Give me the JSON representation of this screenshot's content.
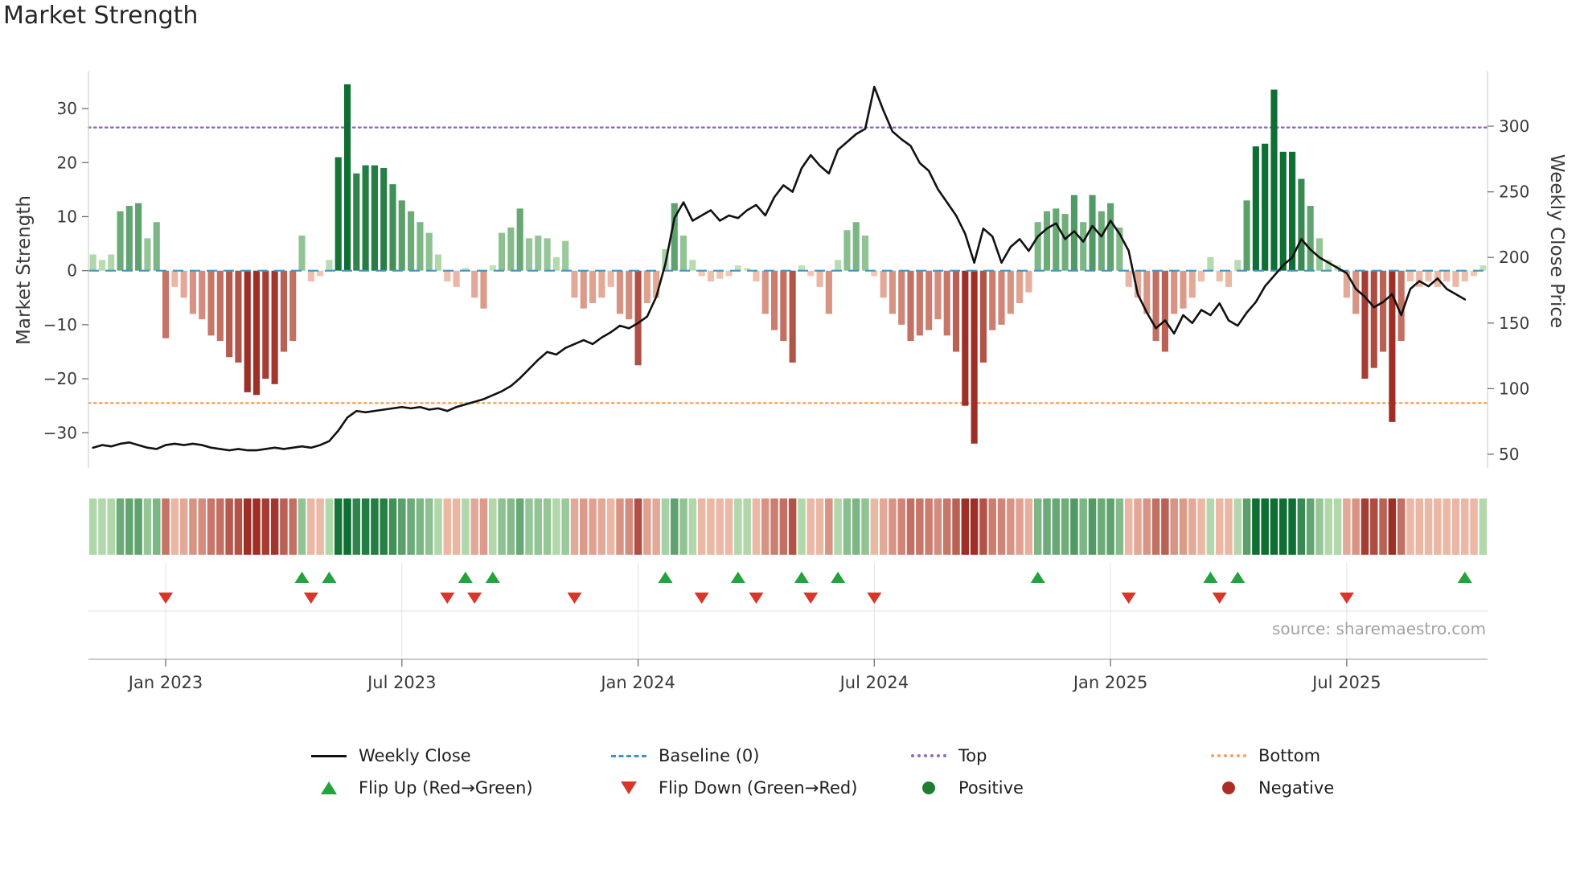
{
  "title": "Market Strength",
  "source": "source: sharemaestro.com",
  "axes": {
    "left_label": "Market Strength",
    "right_label": "Weekly Close Price",
    "left_tick_labels": [
      "30",
      "20",
      "10",
      "0",
      "−10",
      "−20",
      "−30"
    ],
    "left_tick_values": [
      30,
      20,
      10,
      0,
      -10,
      -20,
      -30
    ],
    "right_tick_labels": [
      "300",
      "250",
      "200",
      "150",
      "100",
      "50"
    ],
    "right_tick_values": [
      300,
      250,
      200,
      150,
      100,
      50
    ],
    "x_tick_labels": [
      "Jan 2023",
      "Jul 2023",
      "Jan 2024",
      "Jul 2024",
      "Jan 2025",
      "Jul 2025"
    ]
  },
  "colors": {
    "pos_light": "#c9e7bd",
    "pos_dark": "#0e6e33",
    "neg_light": "#f7cdb9",
    "neg_dark": "#9e2f27",
    "price_line": "#111111",
    "baseline": "#4393c3",
    "top_line": "#9467bd",
    "bottom_line": "#f5a45c",
    "spine": "#d4d4d4",
    "grid": "#e2e2e2",
    "axis_line": "#b8b8b8",
    "tick_mark": "#6f6f6f",
    "tick_text": "#3a3a3a",
    "source_text": "#a3a3a3"
  },
  "legend": {
    "position": "bottom-center",
    "rows": [
      [
        {
          "label": "Weekly Close",
          "type": "line",
          "color": "#111111"
        },
        {
          "label": "Baseline (0)",
          "type": "dashed",
          "color": "#4393c3"
        },
        {
          "label": "Top",
          "type": "dotted",
          "color": "#9467bd"
        },
        {
          "label": "Bottom",
          "type": "dotted",
          "color": "#f5a45c"
        }
      ],
      [
        {
          "label": "Flip Up (Red→Green)",
          "type": "triangle-up",
          "color": "#23a33d"
        },
        {
          "label": "Flip Down (Green→Red)",
          "type": "triangle-down",
          "color": "#d8352b"
        },
        {
          "label": "Positive",
          "type": "dot",
          "color": "#1e7d32"
        },
        {
          "label": "Negative",
          "type": "dot",
          "color": "#aa2e25"
        }
      ]
    ]
  },
  "chart_data": {
    "type": "combo",
    "subtypes": [
      "bar",
      "line",
      "heatmap",
      "scatter-markers"
    ],
    "n_weeks": 152,
    "left_ylim": [
      -36.5,
      37
    ],
    "baseline": 0,
    "top_line": 26.5,
    "bottom_line": -24.5,
    "x_tick_weeks": [
      8,
      34,
      60,
      86,
      112,
      138
    ],
    "strength_weekly": [
      3,
      2,
      3,
      11,
      12,
      12.5,
      6,
      9,
      -12.5,
      -3,
      -5,
      -8,
      -9,
      -12,
      -13,
      -16,
      -17,
      -22.5,
      -23,
      -20,
      -21,
      -15,
      -13,
      6.5,
      -2,
      -1,
      2,
      21,
      34.5,
      18,
      19.5,
      19.5,
      19,
      16,
      13,
      11,
      9,
      7,
      3,
      -2,
      -3,
      0.5,
      -5,
      -7,
      1,
      7,
      8,
      11.5,
      6,
      6.5,
      6,
      2.5,
      5.5,
      -5,
      -7,
      -6,
      -5,
      -3,
      -8,
      -9,
      -17.5,
      -6,
      -5,
      4,
      12.5,
      6.5,
      2,
      -1,
      -2,
      -1.5,
      -1,
      1,
      0.5,
      -2,
      -8,
      -11,
      -13,
      -17,
      1,
      -1,
      -3,
      -8,
      2,
      7.5,
      9,
      6.5,
      -1,
      -5,
      -8,
      -10,
      -13,
      -12,
      -11,
      -9,
      -12,
      -15,
      -25,
      -32,
      -17,
      -11,
      -10,
      -8,
      -6,
      -4,
      9,
      11,
      11.5,
      10.5,
      14,
      9,
      14,
      11,
      12.5,
      8,
      -3,
      -5,
      -8,
      -13,
      -15,
      -8,
      -7,
      -5,
      -2,
      2.5,
      -2,
      -3,
      2,
      13,
      23,
      23.5,
      33.5,
      22,
      22,
      17,
      12,
      6,
      2,
      1,
      -5,
      -8,
      -20,
      -18,
      -15,
      -28,
      -13,
      -2,
      -3,
      -2,
      -3,
      -2,
      -3,
      -2,
      -1,
      1
    ],
    "price_weekly": [
      55,
      57,
      56,
      58,
      59,
      57,
      55,
      54,
      57,
      58,
      57,
      58,
      57,
      55,
      54,
      53,
      54,
      53,
      53,
      54,
      55,
      54,
      55,
      56,
      55,
      57,
      60,
      68,
      78,
      83,
      82,
      83,
      84,
      85,
      86,
      85,
      86,
      84,
      85,
      83,
      86,
      88,
      90,
      92,
      95,
      98,
      102,
      108,
      115,
      122,
      128,
      126,
      131,
      134,
      137,
      134,
      139,
      143,
      148,
      146,
      150,
      155,
      170,
      195,
      230,
      242,
      228,
      232,
      236,
      228,
      232,
      230,
      236,
      240,
      232,
      246,
      255,
      250,
      268,
      278,
      270,
      264,
      282,
      288,
      294,
      298,
      330,
      312,
      296,
      290,
      285,
      272,
      266,
      252,
      242,
      232,
      218,
      196,
      222,
      216,
      196,
      208,
      214,
      205,
      216,
      222,
      226,
      214,
      220,
      212,
      224,
      216,
      228,
      218,
      205,
      172,
      158,
      146,
      152,
      142,
      156,
      150,
      160,
      156,
      165,
      152,
      148,
      158,
      166,
      178,
      186,
      194,
      200,
      214,
      206,
      200,
      196,
      192,
      188,
      176,
      170,
      162,
      166,
      172,
      156,
      176,
      182,
      178,
      184,
      176,
      172,
      168
    ],
    "flip_up_weeks": [
      23,
      26,
      41,
      44,
      63,
      71,
      78,
      82,
      104,
      123,
      126,
      151
    ],
    "flip_down_weeks": [
      8,
      24,
      39,
      42,
      53,
      67,
      73,
      79,
      86,
      114,
      124,
      138
    ]
  }
}
